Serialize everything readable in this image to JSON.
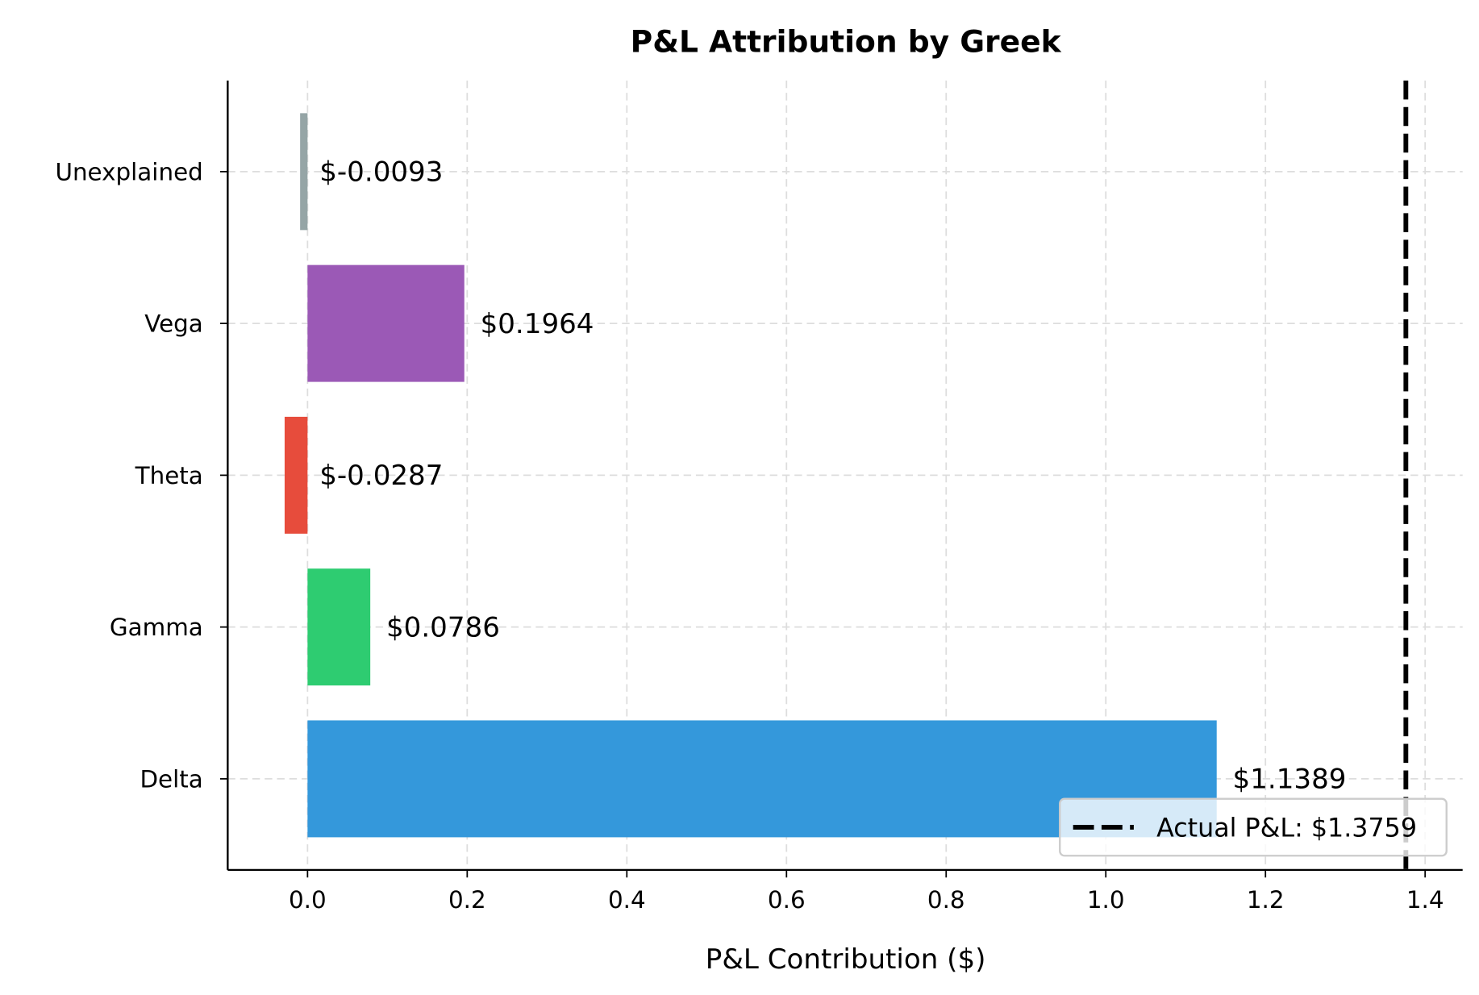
{
  "chart_data": {
    "type": "bar",
    "orientation": "horizontal",
    "title": "P&L Attribution by Greek",
    "xlabel": "P&L Contribution ($)",
    "ylabel": "",
    "xlim": [
      -0.1,
      1.447
    ],
    "xticks": [
      0.0,
      0.2,
      0.4,
      0.6,
      0.8,
      1.0,
      1.2,
      1.4
    ],
    "xtick_labels": [
      "0.0",
      "0.2",
      "0.4",
      "0.6",
      "0.8",
      "1.0",
      "1.2",
      "1.4"
    ],
    "categories": [
      "Delta",
      "Gamma",
      "Theta",
      "Vega",
      "Unexplained"
    ],
    "values": [
      1.1389,
      0.0786,
      -0.0287,
      0.1964,
      -0.0093
    ],
    "value_labels": [
      "$1.1389",
      "$0.0786",
      "$-0.0287",
      "$0.1964",
      "$-0.0093"
    ],
    "colors": [
      "#3498db",
      "#2ecc71",
      "#e74c3c",
      "#9b59b6",
      "#95a5a6"
    ],
    "reference_line": {
      "value": 1.3759,
      "style": "dashed",
      "color": "#000000",
      "label": "Actual P&L: $1.3759"
    },
    "legend": {
      "placement": "lower-right",
      "entries": [
        "Actual P&L: $1.3759"
      ]
    },
    "grid": true
  }
}
